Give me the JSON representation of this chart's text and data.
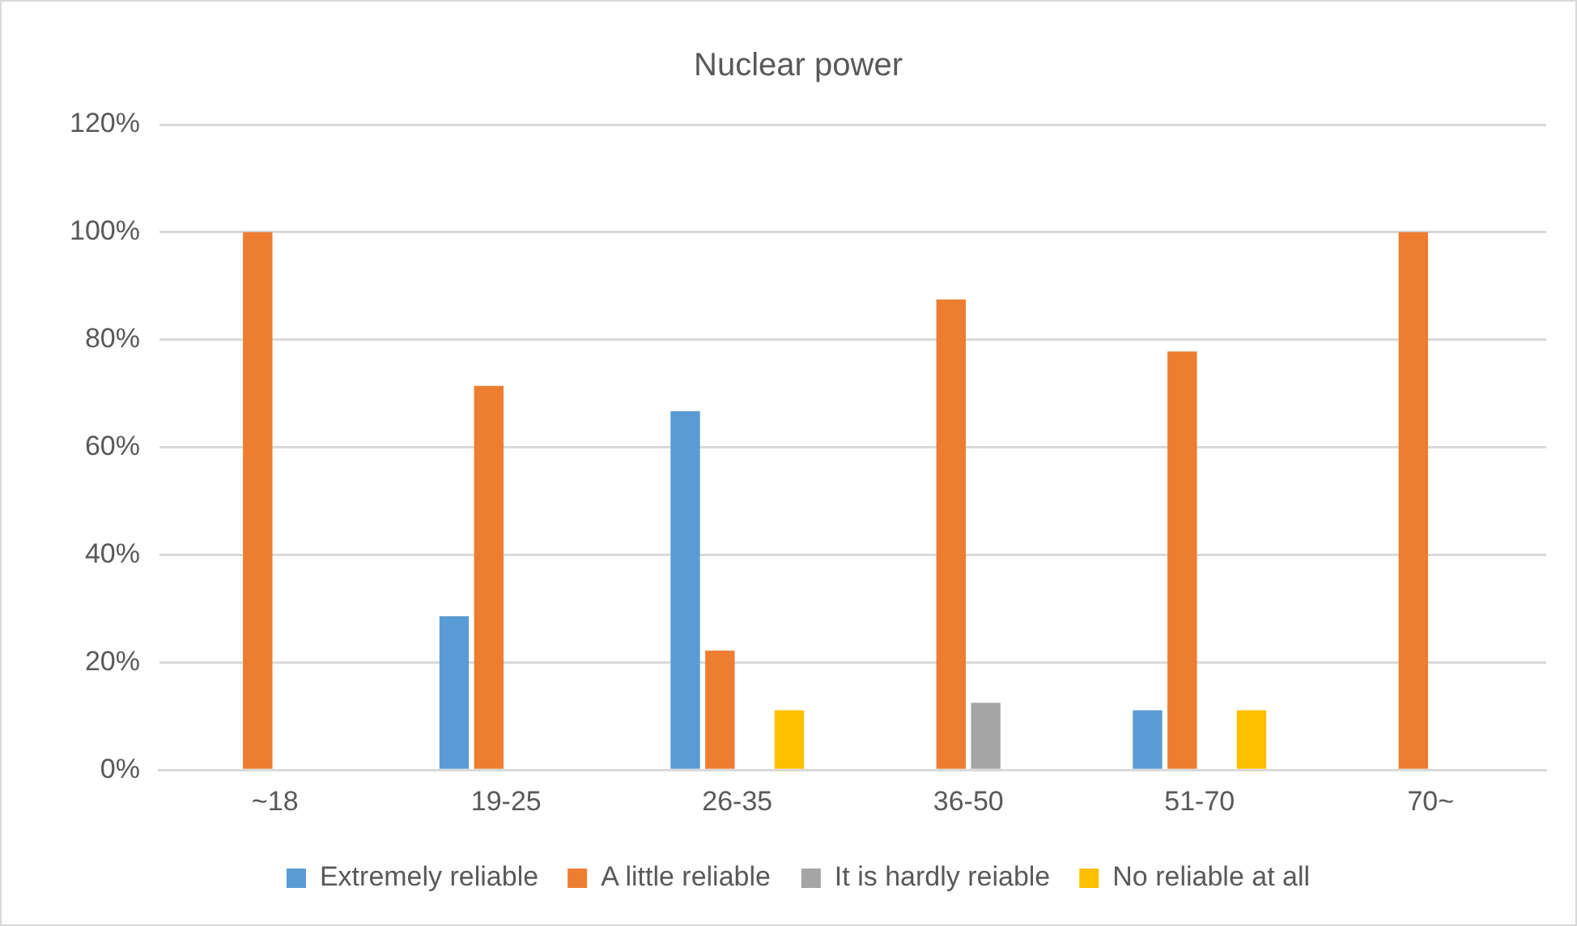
{
  "chart_data": {
    "type": "bar",
    "title": "Nuclear power",
    "categories": [
      "~18",
      "19-25",
      "26-35",
      "36-50",
      "51-70",
      "70~"
    ],
    "series": [
      {
        "name": "Extremely reliable",
        "color": "#5b9bd5",
        "values": [
          0,
          28.6,
          66.7,
          0,
          11.1,
          0
        ]
      },
      {
        "name": "A little reliable",
        "color": "#ed7d31",
        "values": [
          100,
          71.4,
          22.2,
          87.5,
          77.8,
          100
        ]
      },
      {
        "name": "It is hardly reiable",
        "color": "#a5a5a5",
        "values": [
          0,
          0,
          0,
          12.5,
          0,
          0
        ]
      },
      {
        "name": "No reliable at all",
        "color": "#ffc000",
        "values": [
          0,
          0,
          11.1,
          0,
          11.1,
          0
        ]
      }
    ],
    "ylim": [
      0,
      120
    ],
    "yticks": [
      {
        "value": 0,
        "label": "0%"
      },
      {
        "value": 20,
        "label": "20%"
      },
      {
        "value": 40,
        "label": "40%"
      },
      {
        "value": 60,
        "label": "60%"
      },
      {
        "value": 80,
        "label": "80%"
      },
      {
        "value": 100,
        "label": "100%"
      },
      {
        "value": 120,
        "label": "120%"
      }
    ],
    "grid": "y",
    "legend": "bottom"
  }
}
